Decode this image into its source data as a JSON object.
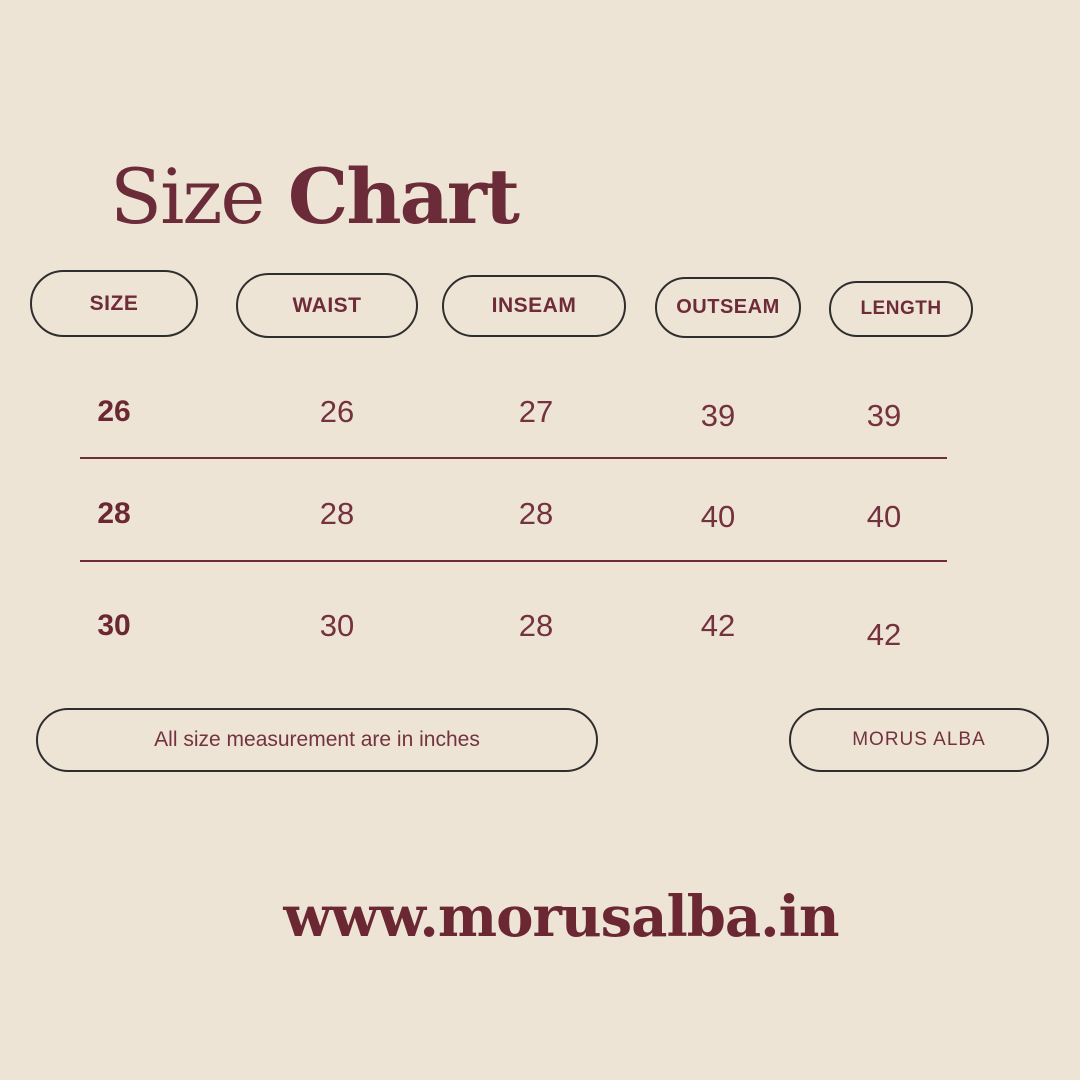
{
  "title": {
    "regular": "Size",
    "bold": "Chart"
  },
  "colors": {
    "background": "#EDE4D6",
    "maroon_dark": "#6B2833",
    "maroon_text": "#74323E",
    "pill_border": "#2E2E2E"
  },
  "chart_data": {
    "type": "table",
    "title": "Size Chart",
    "columns": [
      "SIZE",
      "WAIST",
      "INSEAM",
      "OUTSEAM",
      "LENGTH"
    ],
    "rows": [
      [
        "26",
        "26",
        "27",
        "39",
        "39"
      ],
      [
        "28",
        "28",
        "28",
        "40",
        "40"
      ],
      [
        "30",
        "30",
        "28",
        "42",
        "42"
      ]
    ],
    "note": "All size measurement are in inches",
    "brand": "MORUS ALBA",
    "website": "www.morusalba.in"
  }
}
